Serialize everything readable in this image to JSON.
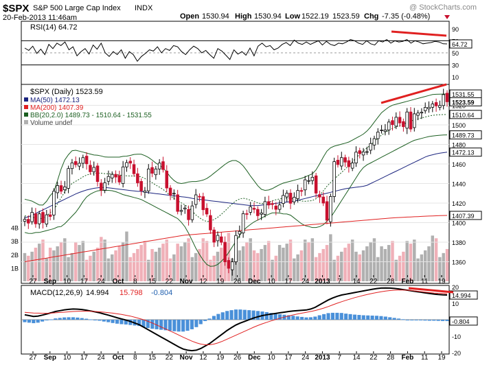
{
  "header": {
    "symbol": "$SPX",
    "name": "S&P 500 Large Cap Index",
    "exchange": "INDX",
    "watermark": "@ StockCharts.com",
    "date": "20-Feb-2013 11:46am",
    "quote": {
      "open_label": "Open",
      "open": "1530.94",
      "high_label": "High",
      "high": "1530.94",
      "low_label": "Low",
      "low": "1522.19",
      "last": "1523.59",
      "chg_label": "Chg",
      "chg": "-7.35 (-0.48%)"
    }
  },
  "colors": {
    "price_up": "#000000",
    "price_down": "#c8102e",
    "ma50": "#1a237e",
    "ma200": "#e02020",
    "bb": "#1b5e20",
    "volume_up": "#b0b0b0",
    "volume_down": "#f0b0b8",
    "macd_line": "#000000",
    "signal_line": "#e02020",
    "histogram": "#4a90d9",
    "annotation": "#e02020"
  },
  "icons": {
    "down_arrow": "triangle-down-icon",
    "legend_marker": "square-marker"
  },
  "chart_data": [
    {
      "id": "rsi",
      "type": "line",
      "legend": "RSI(14) 64.72",
      "last_value": "64.72",
      "ylim": [
        0,
        100
      ],
      "y_ticks": [
        "90",
        "70",
        "50",
        "30",
        "10"
      ],
      "levels": [
        30,
        70
      ],
      "values": [
        58,
        54,
        61,
        49,
        56,
        47,
        64,
        57,
        66,
        62,
        68,
        55,
        60,
        45,
        52,
        57,
        48,
        63,
        56,
        66,
        50,
        44,
        52,
        47,
        55,
        41,
        52,
        47,
        36,
        44,
        49,
        55,
        53,
        60,
        50,
        57,
        54,
        62,
        60,
        52,
        47,
        55,
        61,
        57,
        50,
        54,
        47,
        41,
        57,
        53,
        46,
        39,
        55,
        48,
        52,
        46,
        58,
        45,
        61,
        66,
        60,
        62,
        55,
        58,
        64,
        67,
        62,
        71,
        66,
        64,
        68,
        64,
        67,
        70,
        63,
        69,
        64,
        62,
        66,
        65,
        68,
        72,
        70,
        66,
        64,
        70,
        65,
        63,
        70,
        68,
        72,
        66,
        70,
        68,
        69,
        72,
        66,
        70,
        68,
        65,
        66,
        67,
        69,
        68,
        65,
        64.72
      ],
      "annotation": "red trendline drawn above RSI in February"
    },
    {
      "id": "price",
      "type": "candlestick",
      "title": "$SPX (Daily) 1523.59",
      "legend": [
        {
          "name": "MA(50)",
          "value": "1472.13",
          "color_key": "ma50"
        },
        {
          "name": "MA(200)",
          "value": "1407.39",
          "color_key": "ma200"
        },
        {
          "name": "BB(20,2.0)",
          "value": "1489.73 - 1510.64 - 1531.55",
          "color_key": "bb"
        },
        {
          "name": "Volume undef",
          "value": "",
          "color_key": "volume_up"
        }
      ],
      "ylim": [
        1340,
        1540
      ],
      "y_ticks": [
        "1520",
        "1500",
        "1480",
        "1460",
        "1440",
        "1420",
        "1400",
        "1380",
        "1360"
      ],
      "value_tags": [
        {
          "value": 1531.55,
          "text": "1531.55",
          "highlight": false
        },
        {
          "value": 1523.59,
          "text": "1523.59",
          "highlight": true
        },
        {
          "value": 1510.64,
          "text": "1510.64",
          "highlight": false
        },
        {
          "value": 1489.73,
          "text": "1489.73",
          "highlight": false
        },
        {
          "value": 1472.13,
          "text": "1472.13",
          "highlight": false
        },
        {
          "value": 1407.39,
          "text": "1407.39",
          "highlight": false
        }
      ],
      "close": [
        1403.4,
        1399.5,
        1410.5,
        1398.8,
        1409.0,
        1400.0,
        1408.0,
        1406.3,
        1432.1,
        1437.9,
        1432.1,
        1436.6,
        1455.3,
        1461.1,
        1459.3,
        1460.7,
        1466.5,
        1460.2,
        1452.0,
        1456.5,
        1442.0,
        1433.2,
        1440.8,
        1447.2,
        1449.4,
        1446.6,
        1441.5,
        1457.0,
        1461.4,
        1460.9,
        1450.0,
        1440.7,
        1432.6,
        1432.5,
        1454.9,
        1450.5,
        1454.9,
        1460.9,
        1454.3,
        1435.4,
        1428.0,
        1430.0,
        1411.5,
        1412.5,
        1415.0,
        1403.0,
        1417.1,
        1428.4,
        1426.6,
        1413.2,
        1408.8,
        1392.5,
        1380.0,
        1387.0,
        1379.9,
        1359.9,
        1353.3,
        1359.9,
        1386.9,
        1391.0,
        1409.2,
        1409.1,
        1416.2,
        1413.6,
        1407.1,
        1409.9,
        1421.5,
        1418.0,
        1418.5,
        1413.6,
        1418.1,
        1427.8,
        1430.2,
        1419.8,
        1426.0,
        1432.9,
        1432.0,
        1443.8,
        1443.0,
        1446.4,
        1430.2,
        1426.2,
        1420.0,
        1402.4,
        1426.7,
        1462.4,
        1459.4,
        1466.5,
        1461.9,
        1457.2,
        1461.0,
        1472.1,
        1470.7,
        1472.3,
        1472.6,
        1480.9,
        1485.9,
        1492.6,
        1494.8,
        1494.8,
        1502.9,
        1500.2,
        1507.8,
        1501.9,
        1498.1,
        1513.2,
        1495.7,
        1511.3,
        1512.1,
        1513.0,
        1517.9,
        1518.0,
        1521.4,
        1519.4,
        1519.8,
        1530.9,
        1523.59
      ],
      "ma50_ylim": [
        1340,
        1540
      ],
      "ma50": [
        1405,
        1406,
        1408,
        1410,
        1412,
        1414,
        1416,
        1418,
        1420,
        1422,
        1424,
        1426,
        1428,
        1430,
        1431.5,
        1433,
        1434,
        1435,
        1435.5,
        1436,
        1436,
        1435.5,
        1435,
        1434.5,
        1434,
        1433.5,
        1433,
        1432.5,
        1432,
        1432,
        1431,
        1430.5,
        1430,
        1429.5,
        1429,
        1428.5,
        1428,
        1427.5,
        1427,
        1426.5,
        1426,
        1425.5,
        1424.5,
        1424,
        1423.5,
        1423,
        1422.5,
        1422,
        1421.5,
        1421,
        1420.5,
        1420,
        1419.5,
        1419,
        1418.5,
        1418,
        1417.5,
        1417.5,
        1417.5,
        1418,
        1418.5,
        1419,
        1419.5,
        1420,
        1420.5,
        1421,
        1421.5,
        1422,
        1423,
        1424,
        1425,
        1426,
        1427,
        1428,
        1429,
        1430,
        1431,
        1432,
        1433,
        1434,
        1435,
        1435.5,
        1436,
        1436.5,
        1437,
        1438,
        1440,
        1442,
        1444,
        1446,
        1448,
        1450,
        1452,
        1454,
        1456,
        1458,
        1460,
        1462,
        1464,
        1466,
        1468,
        1469,
        1470,
        1471,
        1471.5,
        1472.13
      ],
      "ma200": [
        1360,
        1361,
        1362,
        1363,
        1364,
        1365,
        1366,
        1367,
        1368,
        1369,
        1370,
        1371,
        1372,
        1373,
        1374,
        1375,
        1376,
        1377,
        1378,
        1379,
        1380,
        1381,
        1382,
        1383,
        1384,
        1385,
        1386,
        1387,
        1387.5,
        1388,
        1388.5,
        1389,
        1389.5,
        1390,
        1390.5,
        1391,
        1391.5,
        1392,
        1392.5,
        1393,
        1393.5,
        1394,
        1394.5,
        1395,
        1395.5,
        1396,
        1396.5,
        1397,
        1397.5,
        1398,
        1398.5,
        1399,
        1399.5,
        1400,
        1400.5,
        1401,
        1401.5,
        1402,
        1402.5,
        1403,
        1403.5,
        1404,
        1404.5,
        1405,
        1405.3,
        1405.6,
        1405.9,
        1406.2,
        1406.5,
        1406.8,
        1407,
        1407.2,
        1407.39
      ],
      "bb_upper": [
        1424,
        1423,
        1422,
        1420,
        1418,
        1418,
        1422,
        1428,
        1432,
        1444,
        1456,
        1465,
        1470,
        1474,
        1474,
        1473,
        1472,
        1471,
        1470,
        1469,
        1469,
        1468,
        1467,
        1467,
        1467,
        1467,
        1467,
        1468,
        1468,
        1469,
        1470,
        1470,
        1470,
        1468,
        1466,
        1463,
        1460,
        1458,
        1455,
        1450,
        1445,
        1442,
        1440,
        1440,
        1441,
        1442,
        1442,
        1442,
        1443,
        1444,
        1446,
        1449,
        1452,
        1455,
        1458,
        1461,
        1463,
        1464,
        1463,
        1460,
        1456,
        1450,
        1445,
        1440,
        1435,
        1433,
        1433,
        1434,
        1436,
        1438,
        1440,
        1441,
        1442,
        1443,
        1444,
        1445,
        1446,
        1448,
        1449,
        1452,
        1458,
        1465,
        1472,
        1476,
        1478,
        1479,
        1480,
        1481,
        1482,
        1484,
        1486,
        1488,
        1490,
        1493,
        1497,
        1502,
        1507,
        1512,
        1515,
        1518,
        1520,
        1521,
        1522,
        1523,
        1524,
        1525,
        1526,
        1527,
        1528,
        1529,
        1530,
        1531,
        1531.3,
        1531.4,
        1531.5,
        1531.55
      ],
      "bb_lower": [
        1390,
        1389,
        1389,
        1390,
        1390,
        1391,
        1392,
        1393,
        1394,
        1396,
        1396,
        1400,
        1404,
        1408,
        1412,
        1418,
        1424,
        1428,
        1430,
        1432,
        1433,
        1433,
        1433,
        1433,
        1432,
        1431,
        1429,
        1428,
        1427,
        1426,
        1425,
        1424,
        1422,
        1420,
        1418,
        1416,
        1414,
        1412,
        1410,
        1408,
        1406,
        1404,
        1400,
        1395,
        1388,
        1380,
        1372,
        1366,
        1360,
        1356,
        1355,
        1356,
        1358,
        1362,
        1366,
        1372,
        1378,
        1384,
        1390,
        1394,
        1397,
        1400,
        1402,
        1404,
        1406,
        1408,
        1410,
        1410,
        1410,
        1409,
        1409,
        1408,
        1405,
        1402,
        1399,
        1397,
        1396,
        1395,
        1395,
        1396,
        1398,
        1402,
        1406,
        1412,
        1418,
        1424,
        1430,
        1436,
        1442,
        1448,
        1454,
        1458,
        1460,
        1462,
        1464,
        1466,
        1468,
        1470,
        1472,
        1474,
        1476,
        1478,
        1480,
        1482,
        1484,
        1485,
        1486,
        1487,
        1488,
        1488.5,
        1489,
        1489.4,
        1489.6,
        1489.73
      ],
      "volume_ylim": [
        0,
        5
      ],
      "volume_ticks": [
        "4B",
        "3B",
        "2B",
        "1B"
      ],
      "annotation": "red trendline drawn above price highs in February"
    },
    {
      "id": "macd",
      "type": "line",
      "legend": "MACD(12,26,9) 14.994, 15.798, -0.804",
      "legend_parts": {
        "name": "MACD(12,26,9)",
        "macd": "14.994",
        "signal": "15.798",
        "hist": "-0.804"
      },
      "ylim": [
        -20,
        20
      ],
      "y_ticks": [
        "20",
        "10",
        "0",
        "-10",
        "-20"
      ],
      "value_tags": [
        {
          "value": 14.994,
          "text": "14.994"
        },
        {
          "value": -0.804,
          "text": "-0.804"
        }
      ],
      "macd": [
        3,
        2.5,
        2,
        2.2,
        2.8,
        3.5,
        4.2,
        5,
        5.5,
        6,
        6.3,
        6.5,
        6.4,
        6.2,
        5.8,
        5.3,
        4.8,
        4.2,
        3.5,
        2.8,
        2,
        1.2,
        0.5,
        -0.2,
        -1,
        -2,
        -3,
        -4.5,
        -6,
        -7.5,
        -9,
        -10.5,
        -12,
        -13.5,
        -15,
        -16.5,
        -17.8,
        -18.5,
        -18.8,
        -18.5,
        -17.5,
        -16,
        -14.5,
        -12.5,
        -10.5,
        -8.5,
        -6.5,
        -4.8,
        -3.2,
        -2,
        -1,
        0,
        1,
        1.8,
        2.5,
        3,
        3.4,
        3.8,
        4.2,
        4.6,
        5,
        5.3,
        5.5,
        5.7,
        5.9,
        6.5,
        7.5,
        9,
        10.5,
        12,
        13.2,
        14.2,
        15,
        15.5,
        16,
        16.5,
        17,
        17.5,
        18,
        18.5,
        18.9,
        19.2,
        19.3,
        19.2,
        19,
        18.7,
        18.3,
        17.9,
        17.5,
        17.1,
        16.7,
        16.3,
        15.9,
        15.6,
        15.3,
        15.1,
        14.994
      ],
      "signal": [
        4.5,
        4.3,
        4.1,
        4,
        3.9,
        3.9,
        4,
        4.2,
        4.4,
        4.6,
        4.8,
        5,
        5.1,
        5.2,
        5.2,
        5.1,
        5,
        4.8,
        4.6,
        4.3,
        4,
        3.6,
        3.2,
        2.7,
        2.2,
        1.5,
        0.8,
        0,
        -1,
        -2,
        -3.2,
        -4.4,
        -5.6,
        -6.8,
        -8,
        -9.3,
        -10.6,
        -11.8,
        -13,
        -14,
        -14.8,
        -15.2,
        -15.2,
        -14.8,
        -14,
        -13,
        -11.8,
        -10.6,
        -9.4,
        -8.2,
        -7,
        -5.8,
        -4.6,
        -3.5,
        -2.5,
        -1.6,
        -0.7,
        0.1,
        0.9,
        1.6,
        2.3,
        2.9,
        3.5,
        4,
        4.5,
        5,
        5.6,
        6.3,
        7.1,
        8,
        9,
        10,
        10.9,
        11.8,
        12.6,
        13.4,
        14.1,
        14.8,
        15.4,
        16,
        16.5,
        17,
        17.4,
        17.7,
        17.9,
        18,
        18,
        17.9,
        17.7,
        17.4,
        17.1,
        16.8,
        16.5,
        16.2,
        16,
        15.9,
        15.798
      ],
      "annotation": "red trendline drawn above MACD in February"
    }
  ],
  "x_axis": {
    "labels": [
      {
        "text": "27",
        "bold": false
      },
      {
        "text": "Sep",
        "bold": true
      },
      {
        "text": "10",
        "bold": false
      },
      {
        "text": "17",
        "bold": false
      },
      {
        "text": "24",
        "bold": false
      },
      {
        "text": "Oct",
        "bold": true
      },
      {
        "text": "8",
        "bold": false
      },
      {
        "text": "15",
        "bold": false
      },
      {
        "text": "22",
        "bold": false
      },
      {
        "text": "Nov",
        "bold": true
      },
      {
        "text": "12",
        "bold": false
      },
      {
        "text": "19",
        "bold": false
      },
      {
        "text": "26",
        "bold": false
      },
      {
        "text": "Dec",
        "bold": true
      },
      {
        "text": "10",
        "bold": false
      },
      {
        "text": "17",
        "bold": false
      },
      {
        "text": "24",
        "bold": false
      },
      {
        "text": "2013",
        "bold": true
      },
      {
        "text": "7",
        "bold": false
      },
      {
        "text": "14",
        "bold": false
      },
      {
        "text": "22",
        "bold": false
      },
      {
        "text": "28",
        "bold": false
      },
      {
        "text": "Feb",
        "bold": true
      },
      {
        "text": "11",
        "bold": false
      },
      {
        "text": "19",
        "bold": false
      }
    ]
  }
}
